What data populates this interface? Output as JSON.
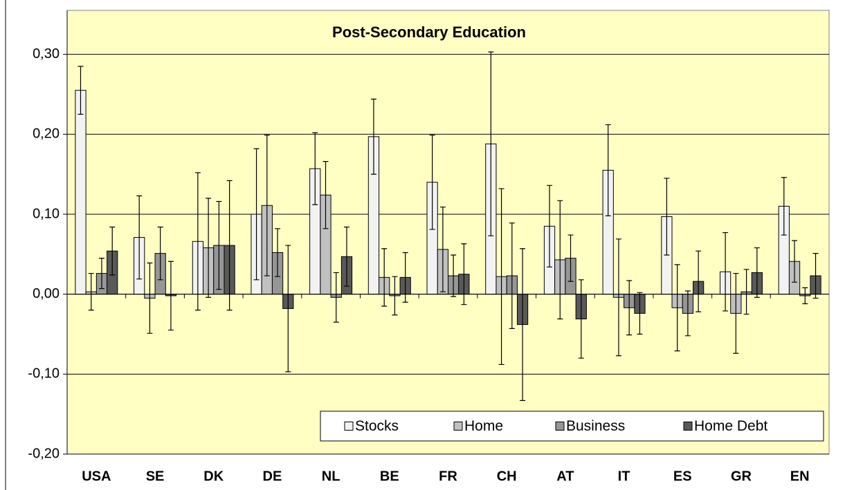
{
  "chart_data": {
    "type": "bar",
    "title": "Post-Secondary Education",
    "categories": [
      "USA",
      "SE",
      "DK",
      "DE",
      "NL",
      "BE",
      "FR",
      "CH",
      "AT",
      "IT",
      "ES",
      "GR",
      "EN"
    ],
    "series": [
      {
        "name": "Stocks",
        "color": "#f2f2f2",
        "values": [
          0.255,
          0.071,
          0.066,
          0.1,
          0.157,
          0.197,
          0.14,
          0.188,
          0.085,
          0.155,
          0.097,
          0.028,
          0.11
        ],
        "errors": [
          0.03,
          0.052,
          0.086,
          0.082,
          0.045,
          0.047,
          0.059,
          0.115,
          0.051,
          0.057,
          0.048,
          0.049,
          0.036
        ]
      },
      {
        "name": "Home",
        "color": "#c0c0c0",
        "values": [
          0.003,
          -0.005,
          0.058,
          0.111,
          0.124,
          0.021,
          0.056,
          0.022,
          0.043,
          -0.004,
          -0.017,
          -0.024,
          0.041
        ],
        "errors": [
          0.023,
          0.044,
          0.062,
          0.088,
          0.042,
          0.036,
          0.053,
          0.11,
          0.074,
          0.073,
          0.054,
          0.05,
          0.026
        ]
      },
      {
        "name": "Business",
        "color": "#969696",
        "values": [
          0.026,
          0.051,
          0.061,
          0.052,
          -0.004,
          -0.002,
          0.023,
          0.023,
          0.045,
          -0.017,
          -0.024,
          0.003,
          -0.002
        ],
        "errors": [
          0.019,
          0.033,
          0.055,
          0.03,
          0.031,
          0.024,
          0.026,
          0.066,
          0.029,
          0.034,
          0.028,
          0.028,
          0.01
        ]
      },
      {
        "name": "Home Debt",
        "color": "#595959",
        "values": [
          0.054,
          -0.002,
          0.061,
          -0.018,
          0.047,
          0.021,
          0.025,
          -0.038,
          -0.031,
          -0.024,
          0.016,
          0.027,
          0.023
        ],
        "errors": [
          0.03,
          0.043,
          0.081,
          0.079,
          0.037,
          0.031,
          0.038,
          0.095,
          0.049,
          0.026,
          0.038,
          0.031,
          0.028
        ]
      }
    ],
    "ylim": [
      -0.2,
      0.355
    ],
    "yticks": [
      {
        "value": -0.2,
        "label": "-0,20"
      },
      {
        "value": -0.1,
        "label": "-0,10"
      },
      {
        "value": 0,
        "label": "0,00"
      },
      {
        "value": 0.1,
        "label": "0,10"
      },
      {
        "value": 0.2,
        "label": "0,20"
      },
      {
        "value": 0.3,
        "label": "0,30"
      }
    ],
    "grid": true,
    "background": "#ffffc4",
    "legend": "lower right"
  }
}
